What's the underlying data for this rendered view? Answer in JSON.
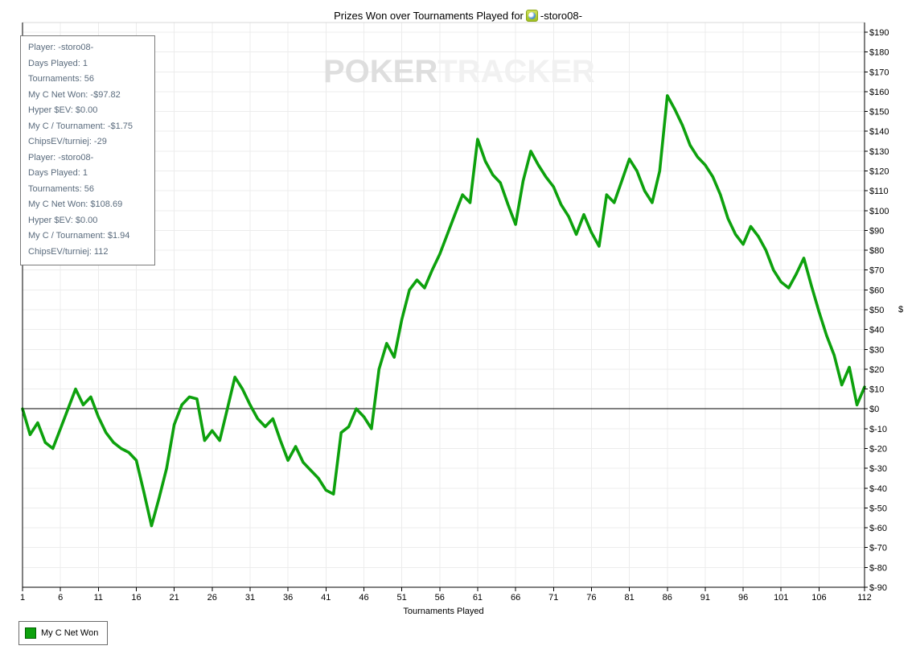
{
  "title": {
    "prefix": "Prizes Won over Tournaments Played for",
    "player": "-storo08-"
  },
  "watermark": {
    "part1": "POKER",
    "part2": "TRACKER"
  },
  "tooltip": {
    "lines": [
      "Player: -storo08-",
      "Days Played: 1",
      "Tournaments: 56",
      "My C Net Won: -$97.82",
      "Hyper $EV: $0.00",
      "My C / Tournament: -$1.75",
      "ChipsEV/turniej: -29",
      "Player: -storo08-",
      "Days Played: 1",
      "Tournaments: 56",
      "My C Net Won: $108.69",
      "Hyper $EV: $0.00",
      "My C / Tournament: $1.94",
      "ChipsEV/turniej: 112"
    ]
  },
  "legend": {
    "label": "My C Net Won"
  },
  "colors": {
    "line": "#0da10d",
    "grid": "#ececec",
    "axis": "#000000",
    "plot_top_border": "#d8d8d8",
    "tooltip_text": "#5a6b7d",
    "watermark_primary": "#dedede",
    "watermark_secondary": "#f1f1f1"
  },
  "chart_data": {
    "type": "line",
    "title": "Prizes Won over Tournaments Played for -storo08-",
    "xlabel": "Tournaments Played",
    "ylabel": "$",
    "xlim": [
      1,
      112
    ],
    "ylim": [
      -90,
      190
    ],
    "ytick_step": 10,
    "ytick_format": "$",
    "grid": true,
    "zero_line": true,
    "legend_position": "bottom-left",
    "x_ticks": [
      1,
      6,
      11,
      16,
      21,
      26,
      31,
      36,
      41,
      46,
      51,
      56,
      61,
      66,
      71,
      76,
      81,
      86,
      91,
      96,
      101,
      106,
      112
    ],
    "series": [
      {
        "name": "My C Net Won",
        "color": "#0da10d",
        "values": [
          0,
          -13,
          -7,
          -17,
          -20,
          -10,
          0,
          10,
          2,
          6,
          -4,
          -12,
          -17,
          -20,
          -22,
          -26,
          -42,
          -59,
          -45,
          -30,
          -8,
          2,
          6,
          5,
          -16,
          -11,
          -16,
          0,
          16,
          10,
          2,
          -5,
          -9,
          -5,
          -16,
          -26,
          -19,
          -27,
          -31,
          -35,
          -41,
          -43,
          -12,
          -9,
          0,
          -4,
          -10,
          20,
          33,
          26,
          45,
          60,
          65,
          61,
          70,
          78,
          88,
          98,
          108,
          104,
          136,
          125,
          118,
          114,
          103,
          93,
          115,
          130,
          123,
          117,
          112,
          103,
          97,
          88,
          98,
          89,
          82,
          108,
          104,
          115,
          126,
          120,
          110,
          104,
          120,
          158,
          151,
          143,
          133,
          127,
          123,
          117,
          108,
          96,
          88,
          83,
          92,
          87,
          80,
          70,
          64,
          61,
          68,
          76,
          62,
          49,
          37,
          27,
          12,
          21,
          2,
          11
        ]
      }
    ]
  }
}
